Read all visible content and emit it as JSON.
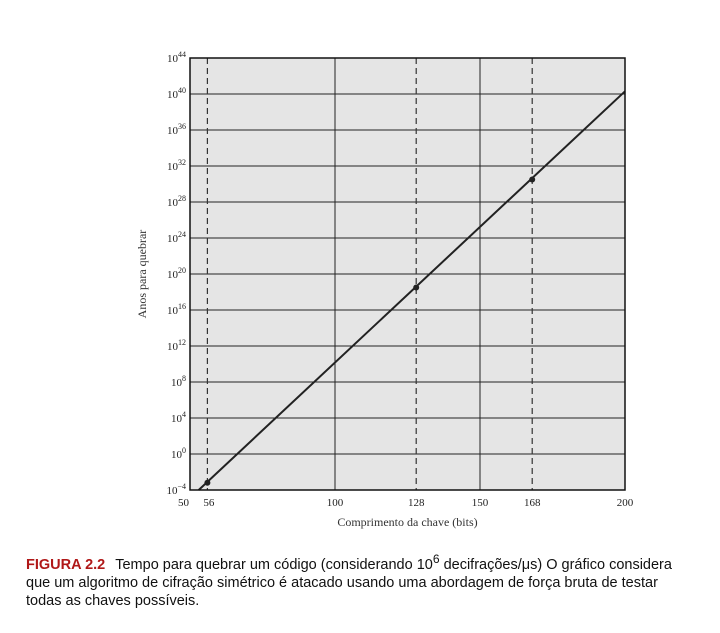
{
  "chart_data": {
    "type": "line",
    "xlabel": "Comprimento da chave (bits)",
    "ylabel": "Anos para quebrar",
    "xlim": [
      50,
      200
    ],
    "x_ticks": [
      {
        "value": 50,
        "label": "50"
      },
      {
        "value": 56,
        "label": "56"
      },
      {
        "value": 100,
        "label": "100"
      },
      {
        "value": 128,
        "label": "128"
      },
      {
        "value": 150,
        "label": "150"
      },
      {
        "value": 168,
        "label": "168"
      },
      {
        "value": 200,
        "label": "200"
      }
    ],
    "y_scale": "log10",
    "y_exponent_range": [
      -4,
      44
    ],
    "y_ticks": [
      {
        "exp": -4,
        "base": "10",
        "sup": "−4"
      },
      {
        "exp": 0,
        "base": "10",
        "sup": "0"
      },
      {
        "exp": 4,
        "base": "10",
        "sup": "4"
      },
      {
        "exp": 8,
        "base": "10",
        "sup": "8"
      },
      {
        "exp": 12,
        "base": "10",
        "sup": "12"
      },
      {
        "exp": 16,
        "base": "10",
        "sup": "16"
      },
      {
        "exp": 20,
        "base": "10",
        "sup": "20"
      },
      {
        "exp": 24,
        "base": "10",
        "sup": "24"
      },
      {
        "exp": 28,
        "base": "10",
        "sup": "28"
      },
      {
        "exp": 32,
        "base": "10",
        "sup": "32"
      },
      {
        "exp": 36,
        "base": "10",
        "sup": "36"
      },
      {
        "exp": 40,
        "base": "10",
        "sup": "40"
      },
      {
        "exp": 44,
        "base": "10",
        "sup": "44"
      }
    ],
    "solid_vertical_gridlines": [
      100,
      150
    ],
    "dashed_vertical_gridlines": [
      56,
      128,
      168
    ],
    "grid": true,
    "series": [
      {
        "line_points": [
          [
            53,
            -4
          ],
          [
            200,
            40.3
          ]
        ],
        "markers": [
          [
            56,
            -3.2
          ],
          [
            128,
            18.5
          ],
          [
            168,
            30.5
          ]
        ]
      }
    ],
    "plot_background": "#e5e5e5",
    "line_color": "#222222"
  },
  "caption": {
    "label": "FIGURA 2.2",
    "text_before": "Tempo para quebrar um código (considerando 10",
    "superscript": "6",
    "text_after": " decifrações/μs) O gráfico considera que um algoritmo de cifração simétrico é atacado usando uma abordagem de força bruta de testar todas as chaves possíveis."
  }
}
